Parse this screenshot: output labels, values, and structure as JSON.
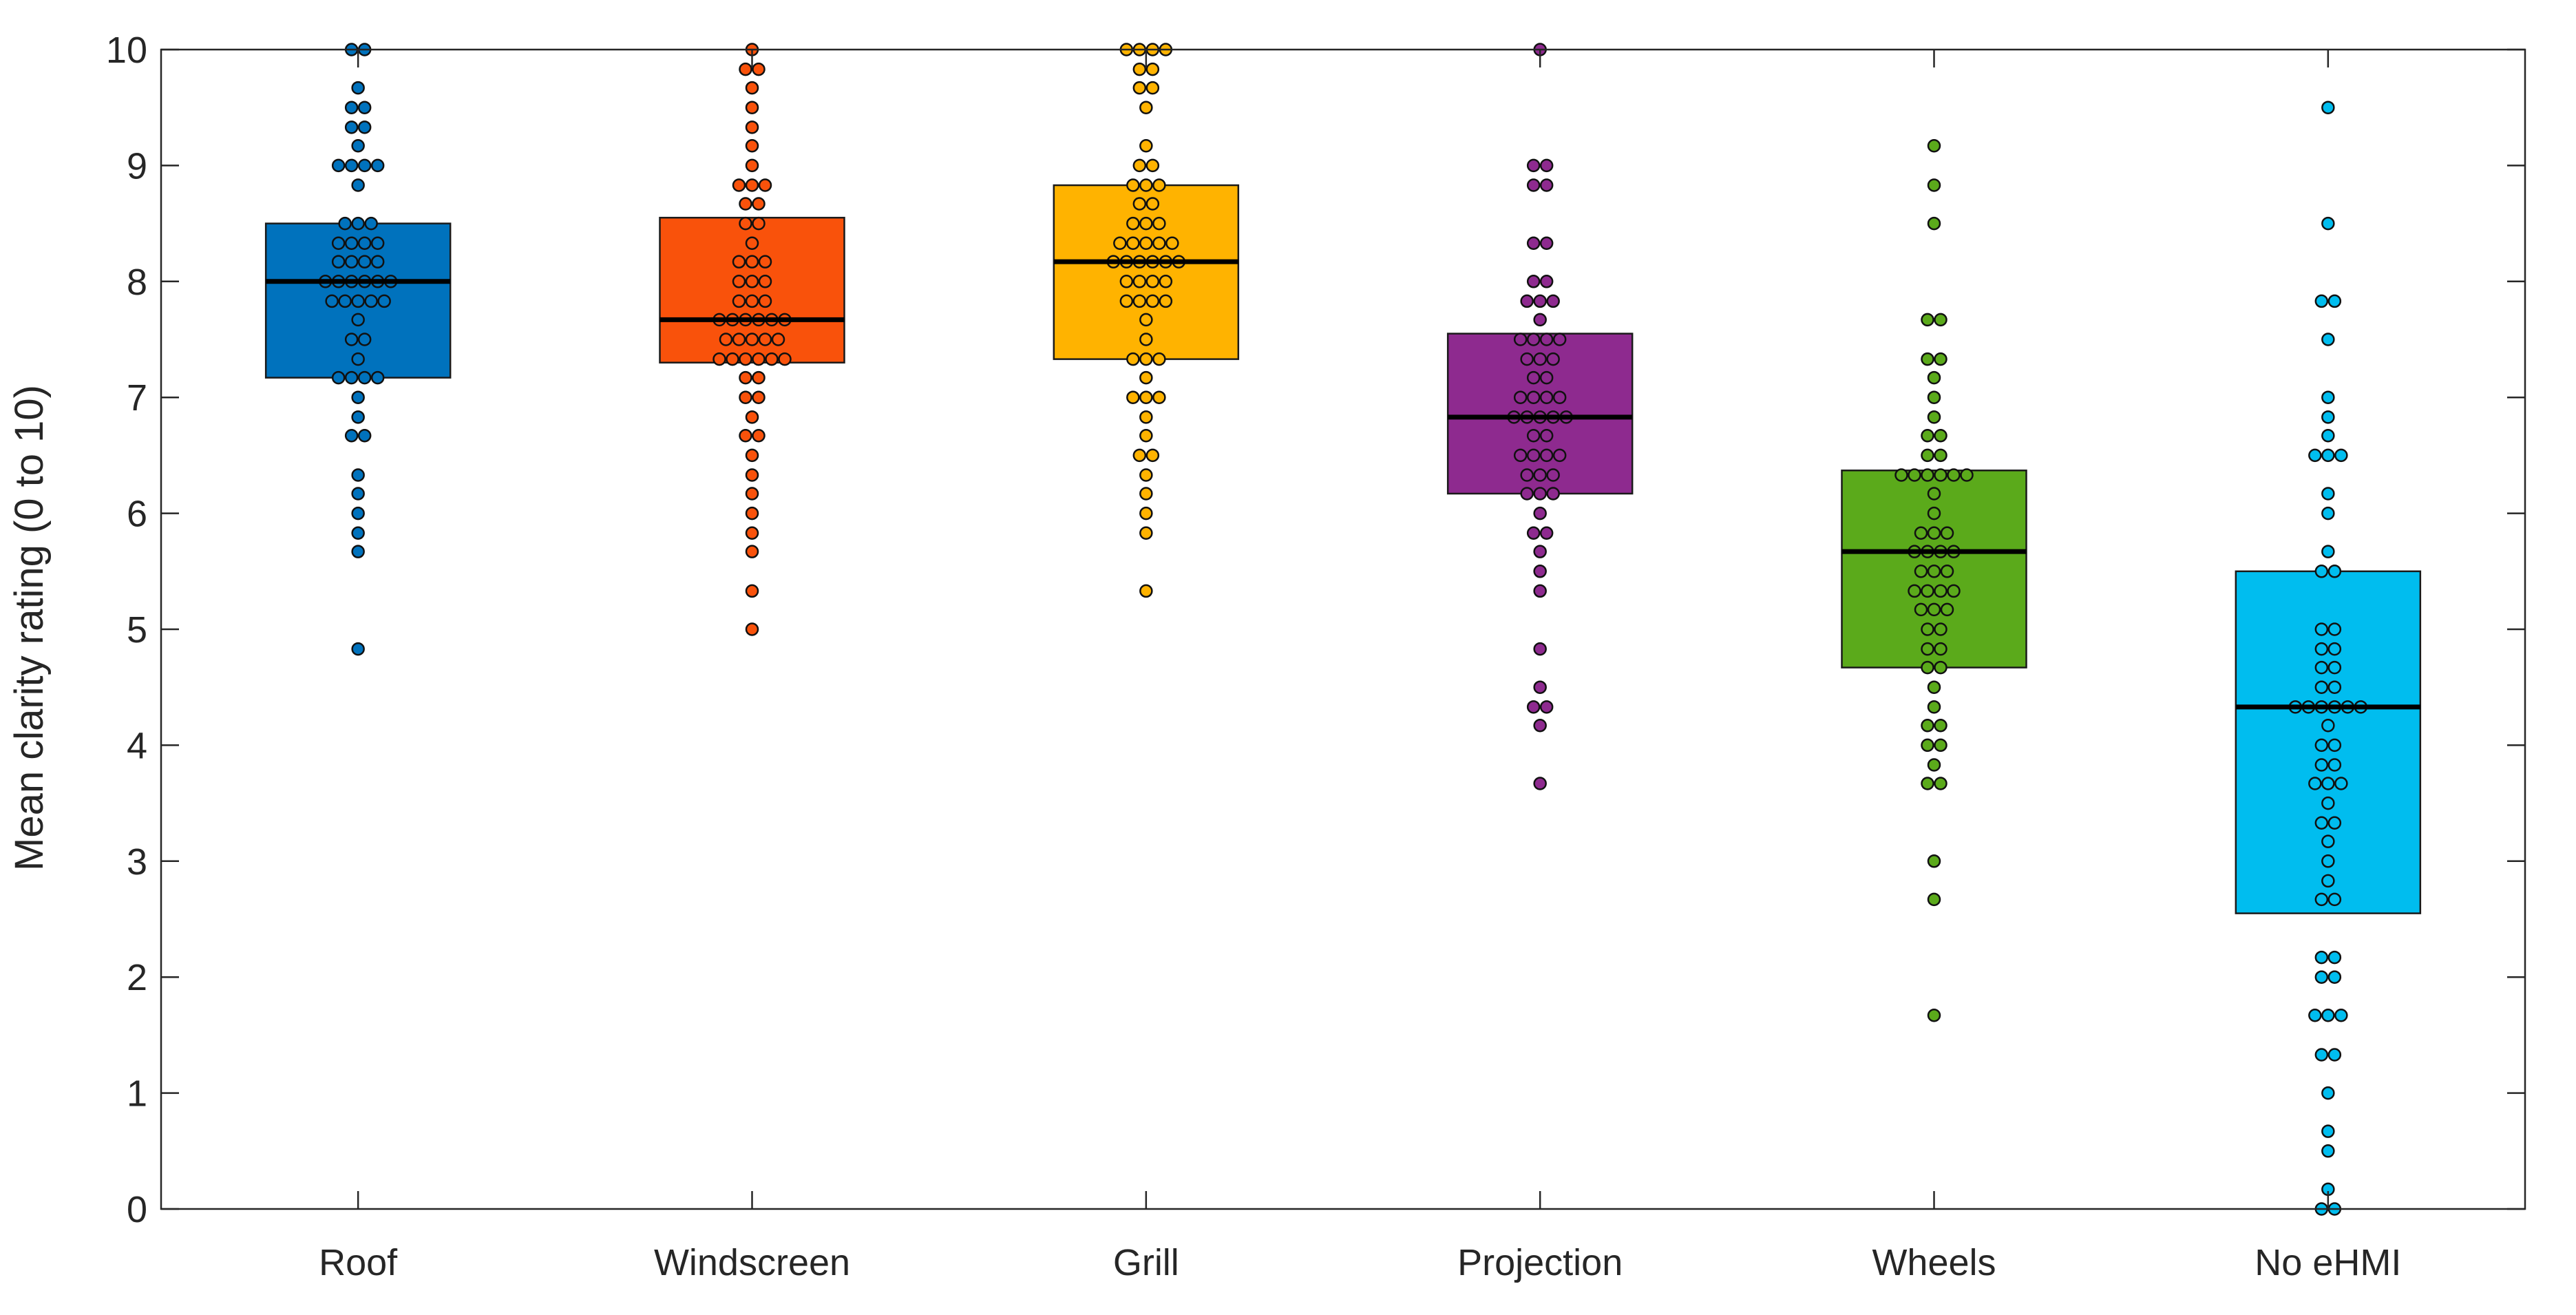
{
  "chart_data": {
    "type": "box",
    "title": "",
    "xlabel": "",
    "ylabel": "Mean clarity rating (0 to 10)",
    "ylim": [
      0,
      10
    ],
    "yticks": [
      "0",
      "1",
      "2",
      "3",
      "4",
      "5",
      "6",
      "7",
      "8",
      "9",
      "10"
    ],
    "categories": [
      "Roof",
      "Windscreen",
      "Grill",
      "Projection",
      "Wheels",
      "No eHMI"
    ],
    "boxes": [
      {
        "name": "Roof",
        "color": "#0072BD",
        "q1": 7.17,
        "median": 8.0,
        "q3": 8.5,
        "points": [
          10,
          10,
          9.67,
          9.5,
          9.5,
          9.33,
          9.33,
          9.17,
          9,
          9,
          9,
          9,
          8.83,
          8.5,
          8.5,
          8.5,
          8.33,
          8.33,
          8.33,
          8.33,
          8.17,
          8.17,
          8.17,
          8.17,
          8,
          8,
          8,
          8,
          8,
          8,
          7.83,
          7.83,
          7.83,
          7.83,
          7.83,
          7.67,
          7.5,
          7.5,
          7.33,
          7.17,
          7.17,
          7.17,
          7.17,
          7,
          6.83,
          6.67,
          6.67,
          6.33,
          6.17,
          6,
          5.83,
          5.67,
          4.83
        ]
      },
      {
        "name": "Windscreen",
        "color": "#F9520B",
        "q1": 7.3,
        "median": 7.67,
        "q3": 8.55,
        "points": [
          10,
          9.83,
          9.83,
          9.67,
          9.5,
          9.33,
          9.17,
          9,
          8.83,
          8.83,
          8.83,
          8.67,
          8.67,
          8.5,
          8.5,
          8.33,
          8.17,
          8.17,
          8.17,
          8,
          8,
          8,
          7.83,
          7.83,
          7.83,
          7.67,
          7.67,
          7.67,
          7.67,
          7.67,
          7.67,
          7.5,
          7.5,
          7.5,
          7.5,
          7.5,
          7.33,
          7.33,
          7.33,
          7.33,
          7.33,
          7.33,
          7.17,
          7.17,
          7,
          7,
          6.83,
          6.67,
          6.67,
          6.5,
          6.33,
          6.17,
          6,
          5.83,
          5.67,
          5.33,
          5
        ]
      },
      {
        "name": "Grill",
        "color": "#FFB300",
        "q1": 7.33,
        "median": 8.17,
        "q3": 8.83,
        "points": [
          10,
          10,
          10,
          10,
          9.83,
          9.83,
          9.67,
          9.67,
          9.5,
          9.17,
          9,
          9,
          8.83,
          8.83,
          8.83,
          8.67,
          8.67,
          8.5,
          8.5,
          8.5,
          8.33,
          8.33,
          8.33,
          8.33,
          8.33,
          8.17,
          8.17,
          8.17,
          8.17,
          8.17,
          8.17,
          8,
          8,
          8,
          8,
          7.83,
          7.83,
          7.83,
          7.83,
          7.67,
          7.5,
          7.33,
          7.33,
          7.33,
          7.17,
          7,
          7,
          7,
          6.83,
          6.67,
          6.5,
          6.5,
          6.33,
          6.17,
          6,
          5.83,
          5.33
        ]
      },
      {
        "name": "Projection",
        "color": "#8E2A8F",
        "q1": 6.17,
        "median": 6.83,
        "q3": 7.55,
        "points": [
          10,
          9,
          9,
          8.83,
          8.83,
          8.33,
          8.33,
          8,
          8,
          7.83,
          7.83,
          7.83,
          7.67,
          7.5,
          7.5,
          7.5,
          7.5,
          7.33,
          7.33,
          7.33,
          7.17,
          7.17,
          7,
          7,
          7,
          7,
          6.83,
          6.83,
          6.83,
          6.83,
          6.83,
          6.67,
          6.67,
          6.5,
          6.5,
          6.5,
          6.5,
          6.33,
          6.33,
          6.33,
          6.17,
          6.17,
          6.17,
          6,
          5.83,
          5.83,
          5.67,
          5.5,
          5.33,
          4.83,
          4.5,
          4.33,
          4.33,
          4.17,
          3.67
        ]
      },
      {
        "name": "Wheels",
        "color": "#5BAA1B",
        "q1": 4.67,
        "median": 5.67,
        "q3": 6.37,
        "points": [
          9.17,
          8.83,
          8.5,
          7.67,
          7.67,
          7.33,
          7.33,
          7.17,
          7,
          6.83,
          6.67,
          6.67,
          6.5,
          6.5,
          6.33,
          6.33,
          6.33,
          6.33,
          6.33,
          6.33,
          6.17,
          6,
          5.83,
          5.83,
          5.83,
          5.67,
          5.67,
          5.67,
          5.67,
          5.5,
          5.5,
          5.5,
          5.33,
          5.33,
          5.33,
          5.33,
          5.17,
          5.17,
          5.17,
          5,
          5,
          4.83,
          4.83,
          4.67,
          4.67,
          4.5,
          4.33,
          4.17,
          4.17,
          4,
          4,
          3.83,
          3.67,
          3.67,
          3,
          2.67,
          1.67
        ]
      },
      {
        "name": "No eHMI",
        "color": "#00BDEF",
        "q1": 2.55,
        "median": 4.33,
        "q3": 5.5,
        "points": [
          9.5,
          8.5,
          7.83,
          7.83,
          7.5,
          7,
          6.83,
          6.67,
          6.5,
          6.5,
          6.5,
          6.17,
          6,
          5.67,
          5.5,
          5.5,
          5,
          5,
          4.83,
          4.83,
          4.67,
          4.67,
          4.5,
          4.5,
          4.33,
          4.33,
          4.33,
          4.33,
          4.33,
          4.33,
          4.17,
          4,
          4,
          3.83,
          3.83,
          3.67,
          3.67,
          3.67,
          3.5,
          3.33,
          3.33,
          3.17,
          3,
          2.83,
          2.67,
          2.67,
          2.17,
          2.17,
          2,
          2,
          1.67,
          1.67,
          1.67,
          1.33,
          1.33,
          1,
          0.67,
          0.5,
          0.17,
          0,
          0
        ]
      }
    ]
  }
}
